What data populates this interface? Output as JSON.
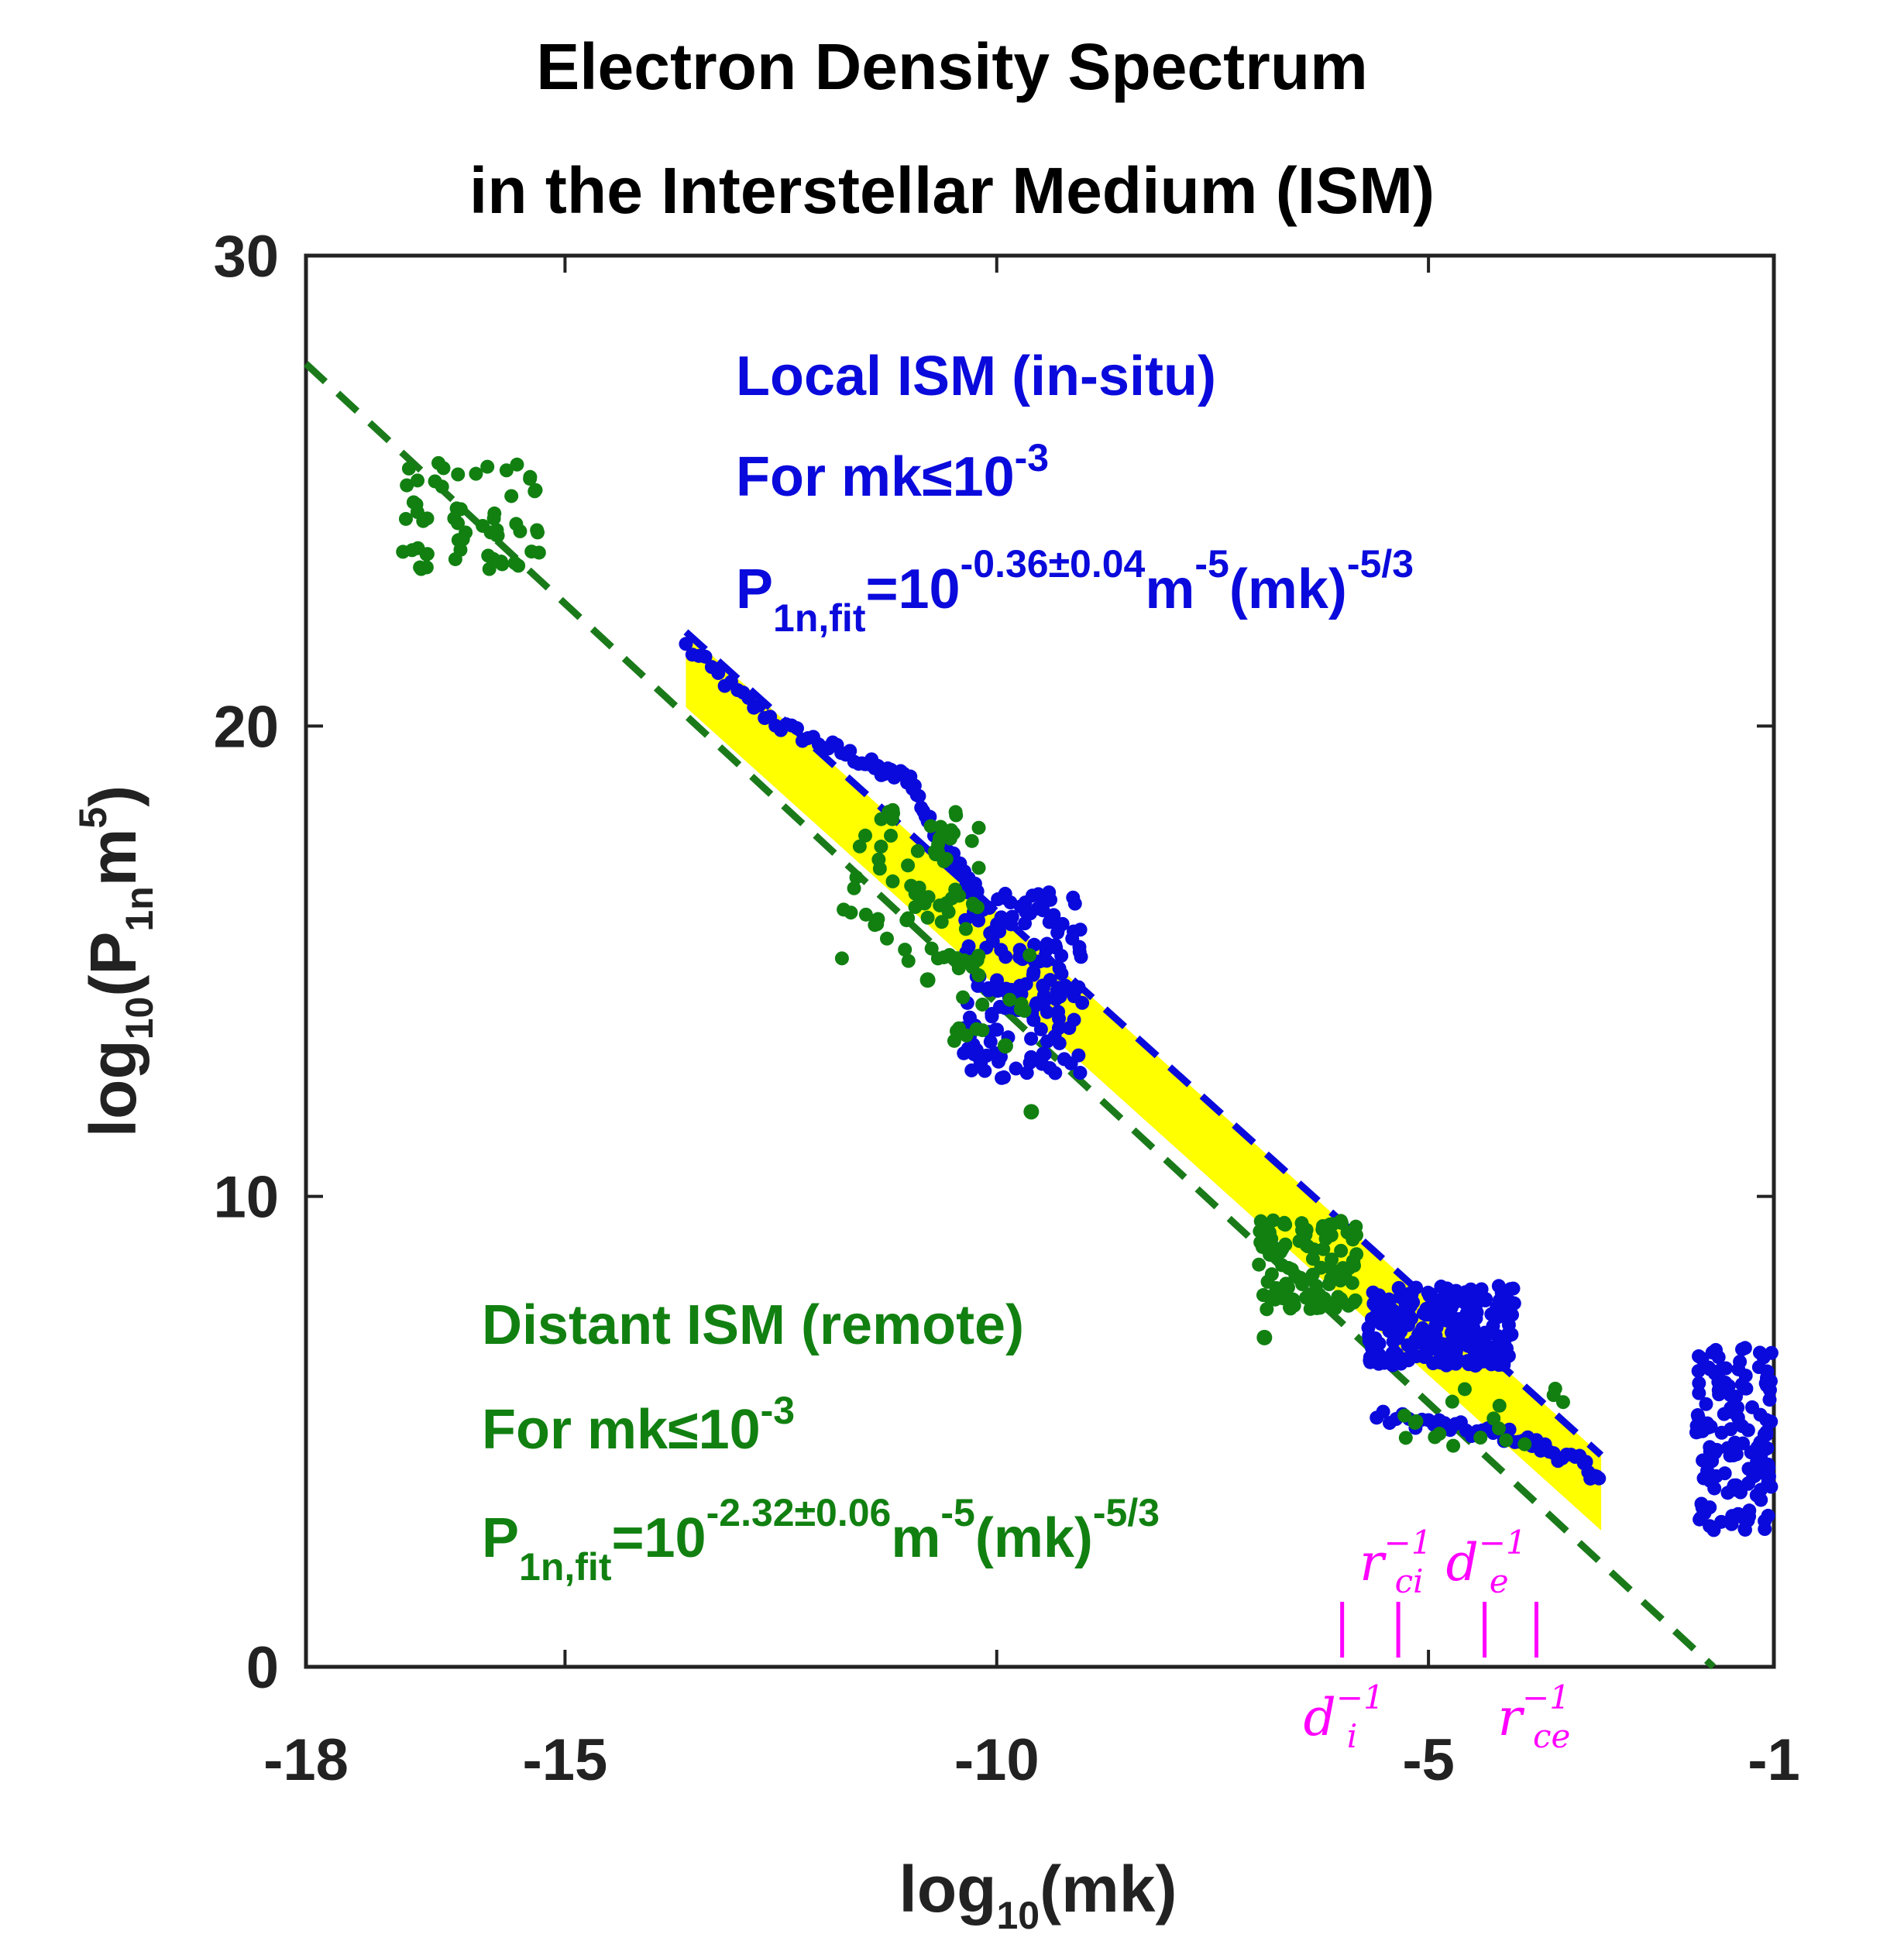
{
  "chart_data": {
    "type": "scatter",
    "title_line1": "Electron Density Spectrum",
    "title_line2": "in the Interstellar Medium (ISM)",
    "xlabel": "log",
    "xlabel_sub": "10",
    "xlabel_arg": "(mk)",
    "ylabel": "log",
    "ylabel_sub": "10",
    "ylabel_arg_open": "(P",
    "ylabel_arg_sub": "1n",
    "ylabel_arg_m": "m",
    "ylabel_arg_sup": "5",
    "ylabel_arg_close": ")",
    "xlim": [
      -18,
      -1
    ],
    "ylim": [
      0,
      30
    ],
    "xticks": [
      -18,
      -15,
      -10,
      -5,
      -1
    ],
    "xtick_labels": [
      "-18",
      "-15",
      "-10",
      "-5",
      "-1"
    ],
    "yticks": [
      0,
      10,
      20,
      30
    ],
    "ytick_labels": [
      "0",
      "10",
      "20",
      "30"
    ],
    "grid": false,
    "colors": {
      "local": "#0a0adc",
      "distant": "#118011",
      "band": "#ffff00",
      "scales": "#ff00ff",
      "axis": "#222222"
    },
    "fit_lines": [
      {
        "name": "distant-fit",
        "style": "dashed",
        "color": "#1a7a1a",
        "x": [
          -18,
          -1.7
        ],
        "y": [
          27.7,
          0
        ]
      },
      {
        "name": "local-fit",
        "style": "dashed",
        "color": "#0a0adc",
        "x": [
          -13.6,
          -3.0
        ],
        "y": [
          22.0,
          4.5
        ]
      }
    ],
    "band": {
      "x": [
        -13.6,
        -3.0,
        -3.0,
        -13.6
      ],
      "y": [
        22.0,
        4.5,
        2.9,
        20.4
      ]
    },
    "series": [
      {
        "name": "Local ISM (in-situ)",
        "color": "#0a0adc",
        "clusters": [
          {
            "x": [
              -10.4,
              -9.0
            ],
            "y": [
              12.5,
              16.5
            ],
            "n": 160
          },
          {
            "x": [
              -5.7,
              -4.0
            ],
            "y": [
              6.4,
              8.1
            ],
            "n": 260
          },
          {
            "x": [
              -1.9,
              -1.0
            ],
            "y": [
              2.9,
              6.9
            ],
            "n": 140
          }
        ],
        "traces": [
          {
            "x": [
              -13.6,
              -13.0,
              -12.5,
              -12.0,
              -11.6,
              -11.3,
              -11.0,
              -10.8,
              -10.6,
              -10.4,
              -10.2
            ],
            "y": [
              21.7,
              20.7,
              20.0,
              19.6,
              19.3,
              19.0,
              18.9,
              18.0,
              17.5,
              16.9,
              16.5
            ]
          },
          {
            "x": [
              -5.6,
              -5.0,
              -4.5,
              -4.0,
              -3.6,
              -3.2,
              -3.0
            ],
            "y": [
              5.3,
              5.2,
              5.0,
              4.9,
              4.6,
              4.3,
              3.9
            ]
          }
        ]
      },
      {
        "name": "Distant ISM (remote)",
        "color": "#118011",
        "clusters": [
          {
            "x": [
              -16.9,
              -15.3
            ],
            "y": [
              23.3,
              25.6
            ],
            "n": 60
          },
          {
            "x": [
              -11.8,
              -10.2
            ],
            "y": [
              15.0,
              18.5
            ],
            "n": 70
          },
          {
            "x": [
              -10.6,
              -9.6
            ],
            "y": [
              13.3,
              15.4
            ],
            "n": 20
          },
          {
            "x": [
              -7.0,
              -5.8
            ],
            "y": [
              7.6,
              9.5
            ],
            "n": 110
          },
          {
            "x": [
              -5.3,
              -3.4
            ],
            "y": [
              4.4,
              6.0
            ],
            "n": 18
          }
        ],
        "singles": [
          {
            "x": -9.6,
            "y": 11.8
          },
          {
            "x": -6.9,
            "y": 7.0
          },
          {
            "x": -9.9,
            "y": 13.2
          },
          {
            "x": -10.8,
            "y": 14.6
          }
        ]
      }
    ],
    "annotations": {
      "local": {
        "line1": "Local ISM (in-situ)",
        "line2_main": "For mk",
        "line2_le": "≤",
        "line2_base": "10",
        "line2_sup": "-3",
        "line3_p": "P",
        "line3_sub": "1n,fit",
        "line3_eq": "=10",
        "line3_exp": "-0.36±0.04",
        "line3_m": "m",
        "line3_msup": "-5",
        "line3_mk": "(mk)",
        "line3_mksup": "-5/3"
      },
      "distant": {
        "line1": "Distant ISM (remote)",
        "line2_main": "For mk",
        "line2_le": "≤",
        "line2_base": "10",
        "line2_sup": "-3",
        "line3_p": "P",
        "line3_sub": "1n,fit",
        "line3_eq": "=10",
        "line3_exp": "-2.32±0.06",
        "line3_m": "m",
        "line3_msup": "-5",
        "line3_mk": "(mk)",
        "line3_mksup": "-5/3"
      }
    },
    "scale_markers": [
      {
        "name": "d_i",
        "letter": "d",
        "sub": "i",
        "sup": "−1",
        "x": -6.0,
        "label_pos": "below"
      },
      {
        "name": "r_ci",
        "letter": "r",
        "sub": "ci",
        "sup": "−1",
        "x": -5.35,
        "label_pos": "above"
      },
      {
        "name": "d_e",
        "letter": "d",
        "sub": "e",
        "sup": "−1",
        "x": -4.35,
        "label_pos": "above"
      },
      {
        "name": "r_ce",
        "letter": "r",
        "sub": "ce",
        "sup": "−1",
        "x": -3.75,
        "label_pos": "below"
      }
    ]
  }
}
